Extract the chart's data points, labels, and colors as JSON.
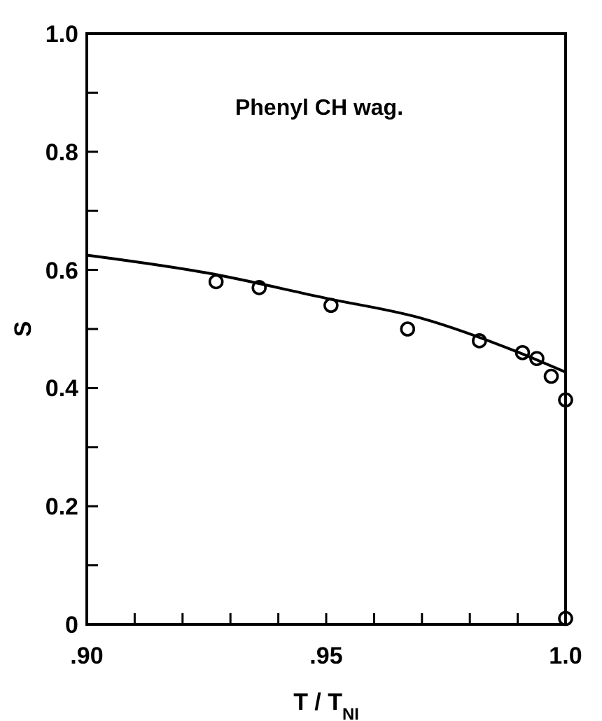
{
  "chart_data": {
    "type": "scatter",
    "xlabel": "T / T$_{NI}$",
    "ylabel": "S",
    "annotations": [
      "Phenyl CH wag."
    ],
    "xlim": [
      0.9,
      1.0
    ],
    "ylim": [
      0,
      1
    ],
    "xticks": [
      {
        "value": 0.9,
        "label": ".90"
      },
      {
        "value": 0.91,
        "label": null
      },
      {
        "value": 0.92,
        "label": null
      },
      {
        "value": 0.93,
        "label": null
      },
      {
        "value": 0.94,
        "label": null
      },
      {
        "value": 0.95,
        "label": ".95"
      },
      {
        "value": 0.96,
        "label": null
      },
      {
        "value": 0.97,
        "label": null
      },
      {
        "value": 0.98,
        "label": null
      },
      {
        "value": 0.99,
        "label": null
      },
      {
        "value": 1.0,
        "label": "1.0"
      }
    ],
    "yticks": [
      0,
      {
        "value": 0.1,
        "label": null
      },
      0.2,
      {
        "value": 0.3,
        "label": null
      },
      0.4,
      {
        "value": 0.5,
        "label": null
      },
      0.6,
      {
        "value": 0.7,
        "label": null
      },
      0.8,
      {
        "value": 0.9,
        "label": null
      },
      {
        "value": 1.0,
        "label": "1.0"
      }
    ],
    "grid": false,
    "series": [
      {
        "marker": "circle",
        "color": "#000000",
        "x": [
          0.927,
          0.936,
          0.951,
          0.967,
          0.982,
          0.991,
          0.994,
          0.997,
          1.0,
          1.0
        ],
        "values": [
          0.58,
          0.57,
          0.54,
          0.5,
          0.48,
          0.46,
          0.45,
          0.42,
          0.38,
          0.01
        ]
      },
      {
        "type": "line",
        "marker": "none",
        "line_style": "solid",
        "color": "#000000",
        "x": [
          0.9,
          0.925,
          0.95,
          0.97,
          0.99,
          1.0
        ],
        "values": [
          0.625,
          0.595,
          0.552,
          0.518,
          0.461,
          0.427
        ]
      }
    ]
  }
}
